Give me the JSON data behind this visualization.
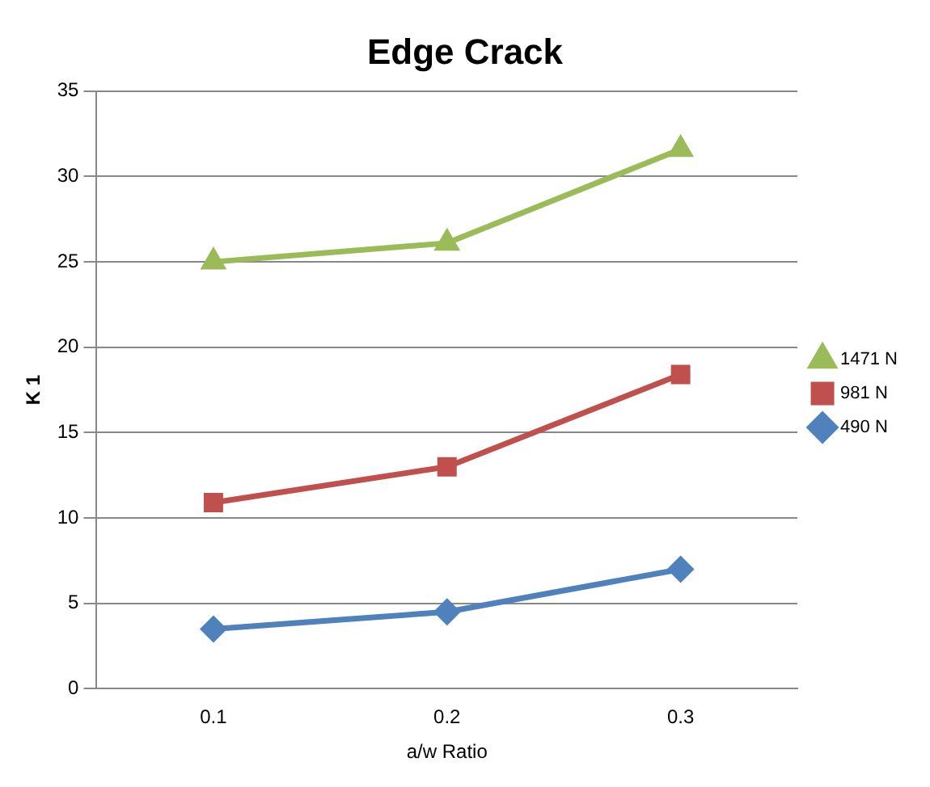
{
  "chart_data": {
    "type": "line",
    "title": "Edge Crack",
    "xlabel": "a/w Ratio",
    "ylabel": "K 1",
    "categories": [
      "0.1",
      "0.2",
      "0.3"
    ],
    "series": [
      {
        "name": "1471 N",
        "color": "#9bbb59",
        "marker": "triangle",
        "values": [
          25.0,
          26.1,
          31.6
        ]
      },
      {
        "name": "981 N",
        "color": "#c0504d",
        "marker": "square",
        "values": [
          10.9,
          13.0,
          18.4
        ]
      },
      {
        "name": "490 N",
        "color": "#4f81bd",
        "marker": "diamond",
        "values": [
          3.5,
          4.5,
          7.0
        ]
      }
    ],
    "ylim": [
      0,
      35
    ],
    "yticks": [
      0,
      5,
      10,
      15,
      20,
      25,
      30,
      35
    ],
    "grid": "y",
    "legend": "right"
  }
}
